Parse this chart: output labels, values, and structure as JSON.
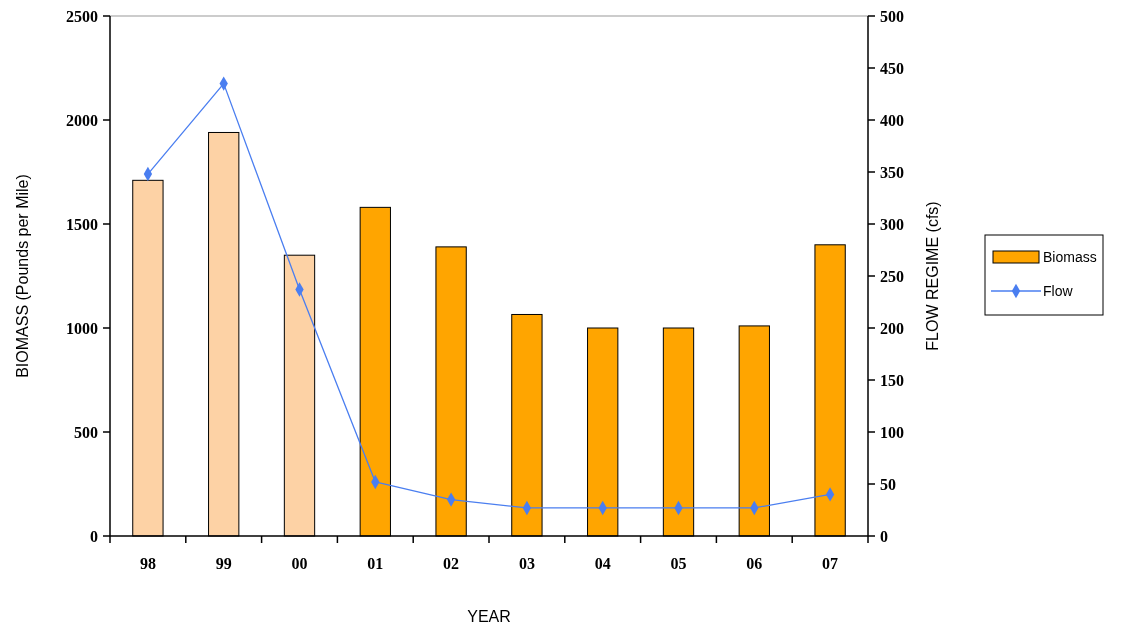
{
  "chart_data": {
    "type": "bar",
    "xlabel": "YEAR",
    "ylabel": "BIOMASS (Pounds per Mile)",
    "y2label": "FLOW REGIME (cfs)",
    "categories": [
      "98",
      "99",
      "00",
      "01",
      "02",
      "03",
      "04",
      "05",
      "06",
      "07"
    ],
    "series": [
      {
        "name": "Biomass",
        "color": "#ffa500",
        "colors": [
          "#fdd2a5",
          "#fdd2a5",
          "#fdd2a5",
          "#ffa500",
          "#ffa500",
          "#ffa500",
          "#ffa500",
          "#ffa500",
          "#ffa500",
          "#ffa500"
        ],
        "values": [
          1710,
          1940,
          1350,
          1580,
          1390,
          1065,
          1000,
          1000,
          1010,
          1400
        ]
      },
      {
        "name": "Flow",
        "type": "line",
        "axis": "y2",
        "color": "#4a7ef0",
        "marker": "diamond",
        "values": [
          348,
          435,
          237,
          52,
          35,
          27,
          27,
          27,
          27,
          40
        ]
      }
    ],
    "ylim": [
      0,
      2500
    ],
    "yticks": [
      0,
      500,
      1000,
      1500,
      2000,
      2500
    ],
    "y2lim": [
      0,
      500
    ],
    "y2ticks": [
      0,
      50,
      100,
      150,
      200,
      250,
      300,
      350,
      400,
      450,
      500
    ],
    "legend": "right",
    "grid": false
  }
}
